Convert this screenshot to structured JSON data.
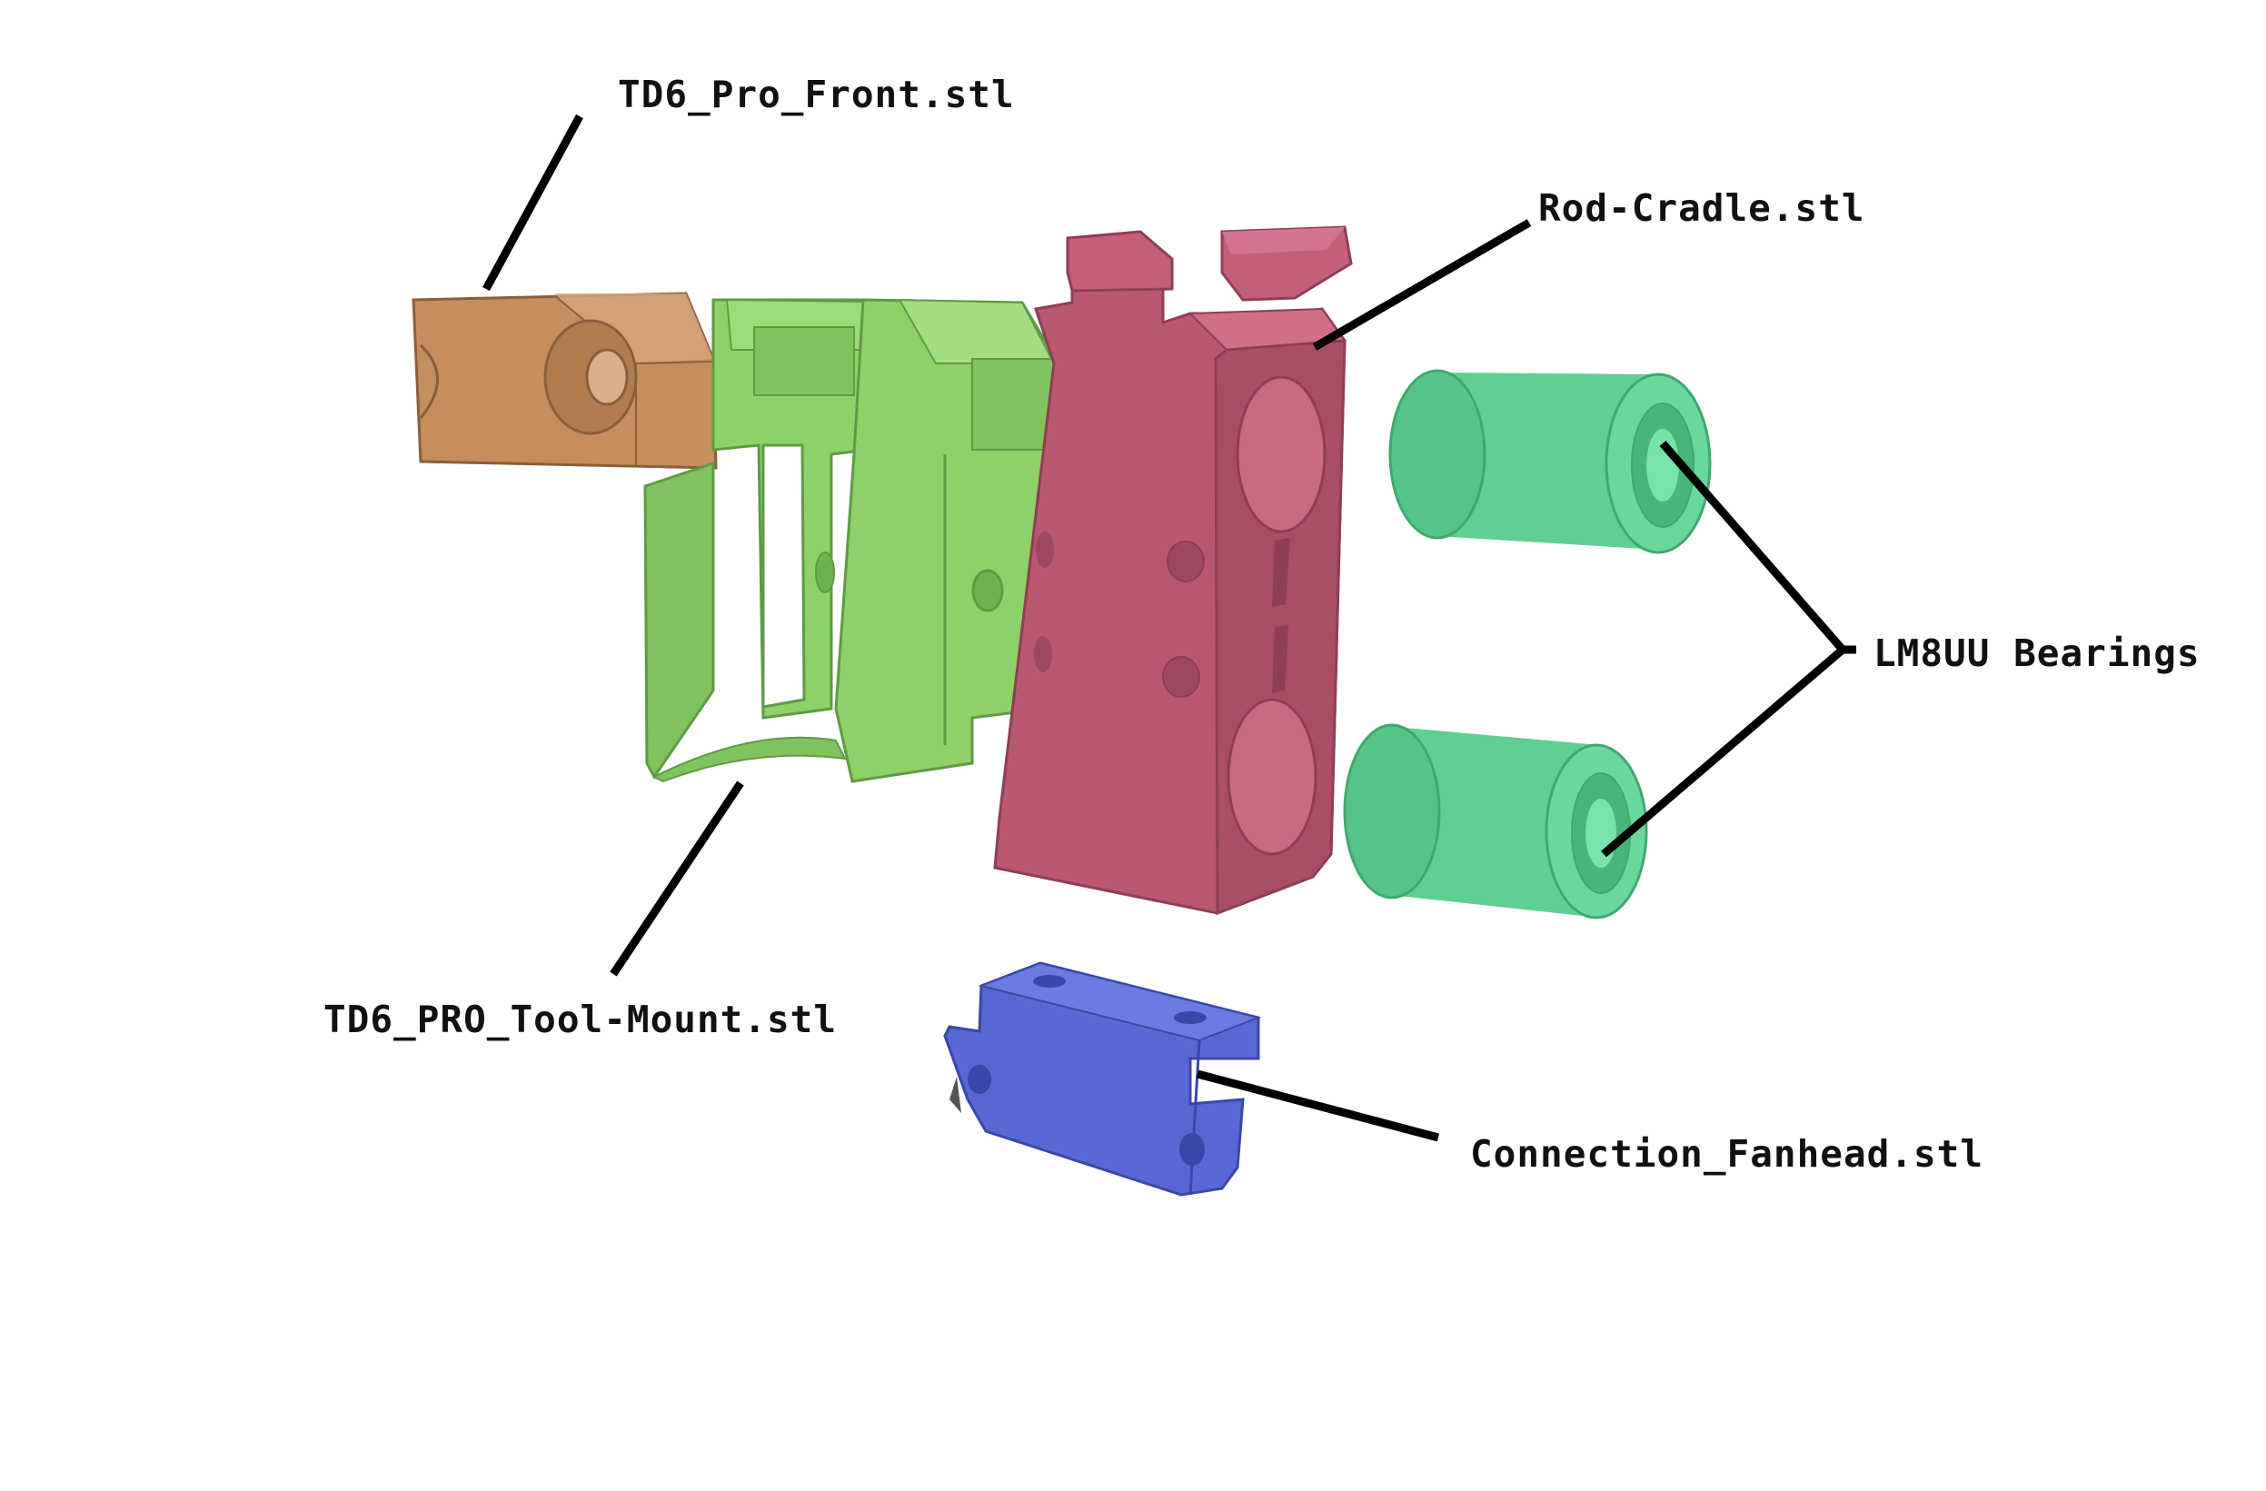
{
  "colors": {
    "background": "#ffffff",
    "front_part": "#c48e5e",
    "tool_mount": "#8dd168",
    "rod_cradle": "#b85870",
    "bearings": "#5fcf93",
    "fanhead": "#5867d6",
    "leader_lines": "#000000"
  },
  "labels": {
    "front": "TD6_Pro_Front.stl",
    "rod_cradle": "Rod-Cradle.stl",
    "bearings": "LM8UU Bearings",
    "tool_mount": "TD6_PRO_Tool-Mount.stl",
    "fanhead": "Connection_Fanhead.stl"
  }
}
